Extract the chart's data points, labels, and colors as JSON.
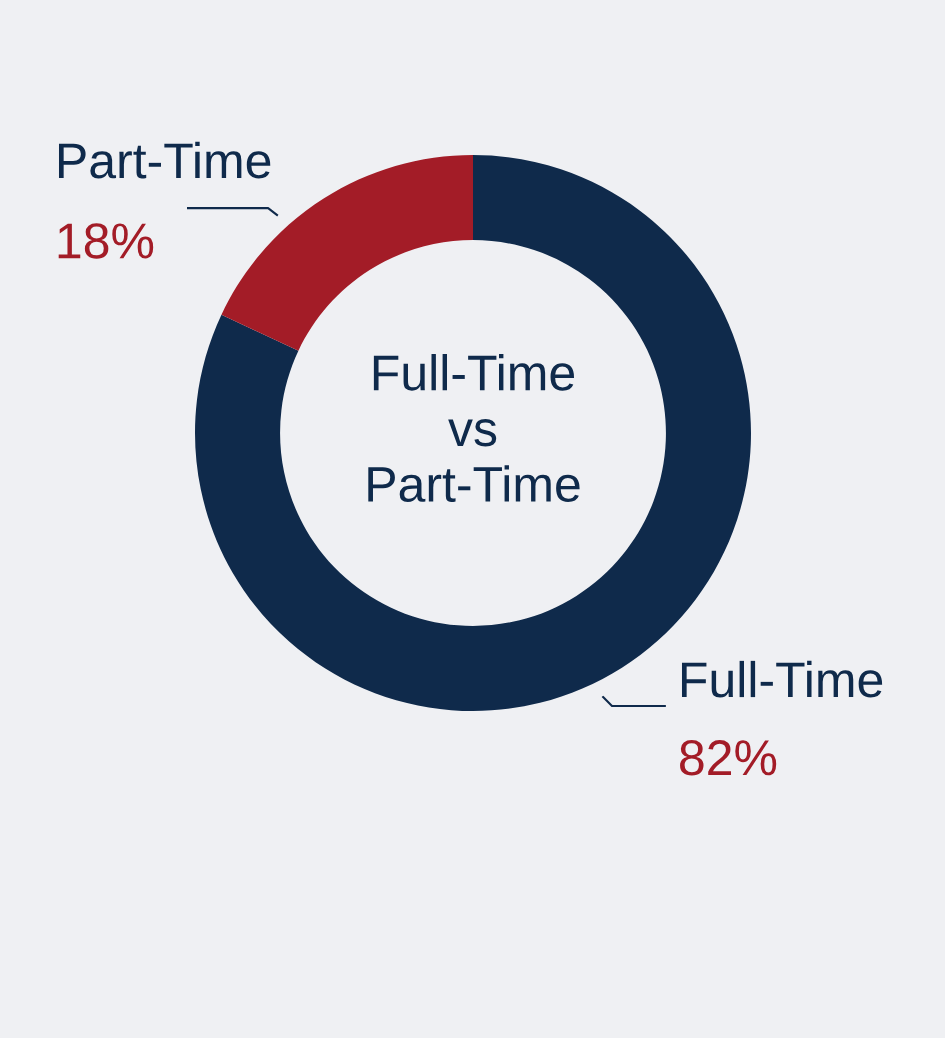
{
  "chart_data": {
    "type": "donut",
    "title": "Full-Time\nvs\nPart-Time",
    "categories": [
      "Full-Time",
      "Part-Time"
    ],
    "values": [
      82,
      18
    ],
    "colors": [
      "#0f2a4b",
      "#a31c27"
    ],
    "value_labels": [
      "82%",
      "18%"
    ]
  }
}
